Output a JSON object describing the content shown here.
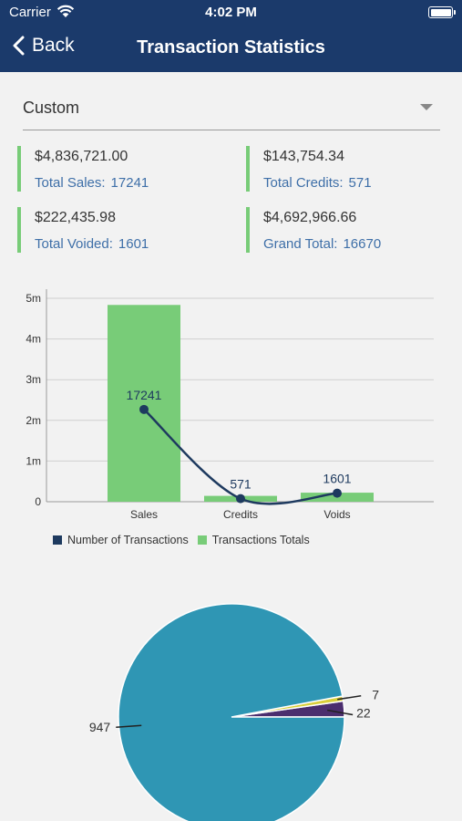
{
  "status_bar": {
    "carrier": "Carrier",
    "time": "4:02 PM"
  },
  "nav": {
    "back_label": "Back",
    "title": "Transaction Statistics"
  },
  "filter": {
    "selected": "Custom"
  },
  "stats": [
    {
      "amount": "$4,836,721.00",
      "label": "Total Sales:",
      "count": "17241"
    },
    {
      "amount": "$143,754.34",
      "label": "Total Credits:",
      "count": "571"
    },
    {
      "amount": "$222,435.98",
      "label": "Total Voided:",
      "count": "1601"
    },
    {
      "amount": "$4,692,966.66",
      "label": "Grand Total:",
      "count": "16670"
    }
  ],
  "colors": {
    "header": "#1b3a6b",
    "accent_green": "#78cc78",
    "line_navy": "#1e3a5f",
    "link_blue": "#3e6fa8",
    "pie_teal": "#2f96b4",
    "pie_purple": "#4b2e6e",
    "pie_yellow": "#d9cf3a"
  },
  "chart_data": [
    {
      "type": "bar",
      "categories": [
        "Sales",
        "Credits",
        "Voids"
      ],
      "ylim": [
        0,
        5000000
      ],
      "yticks": [
        {
          "value": 0,
          "label": "0"
        },
        {
          "value": 1000000,
          "label": "1m"
        },
        {
          "value": 2000000,
          "label": "2m"
        },
        {
          "value": 3000000,
          "label": "3m"
        },
        {
          "value": 4000000,
          "label": "4m"
        },
        {
          "value": 5000000,
          "label": "5m"
        }
      ],
      "series": [
        {
          "name": "Transactions Totals",
          "type": "bar",
          "values": [
            4836721.0,
            143754.34,
            222435.98
          ]
        },
        {
          "name": "Number of Transactions",
          "type": "line",
          "values": [
            17241,
            571,
            1601
          ],
          "labels": [
            "17241",
            "571",
            "1601"
          ],
          "ylim": [
            0,
            38000
          ]
        }
      ],
      "grid": true,
      "legend": "bottom-left"
    },
    {
      "type": "pie",
      "slices": [
        {
          "value": 947,
          "label": "947"
        },
        {
          "value": 22,
          "label": "22"
        },
        {
          "value": 7,
          "label": "7"
        }
      ]
    }
  ]
}
